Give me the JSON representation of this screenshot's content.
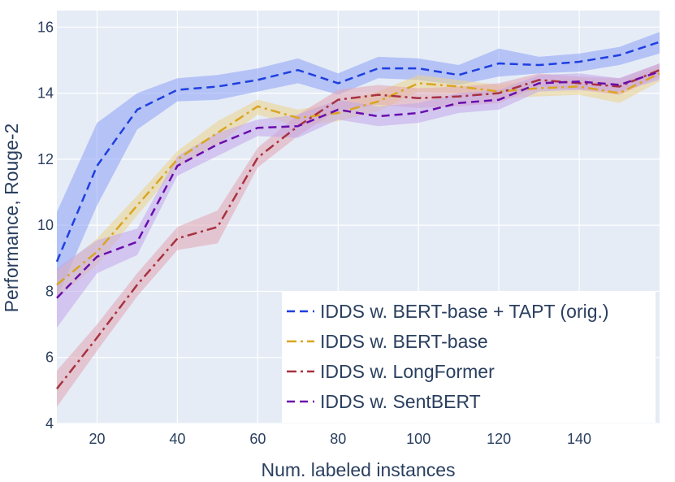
{
  "chart_data": {
    "type": "line",
    "xlabel": "Num. labeled instances",
    "ylabel": "Performance, Rouge-2",
    "xlim": [
      10,
      160
    ],
    "ylim": [
      4,
      16.5
    ],
    "xticks": [
      20,
      40,
      60,
      80,
      100,
      120,
      140
    ],
    "yticks": [
      4,
      6,
      8,
      10,
      12,
      14,
      16
    ],
    "x": [
      10,
      20,
      30,
      40,
      50,
      60,
      70,
      80,
      90,
      100,
      110,
      120,
      130,
      140,
      150,
      160
    ],
    "grid": true,
    "legend_position": "bottom-right",
    "series": [
      {
        "name": "IDDS w. BERT-base + TAPT (orig.)",
        "color": "#1f3fe0",
        "band_color": "#8da0f5",
        "dash": "dash",
        "values": [
          8.9,
          11.8,
          13.5,
          14.1,
          14.2,
          14.4,
          14.7,
          14.3,
          14.75,
          14.75,
          14.55,
          14.9,
          14.85,
          14.95,
          15.15,
          15.55
        ],
        "upper": [
          10.4,
          13.1,
          14.0,
          14.45,
          14.55,
          14.75,
          15.05,
          14.6,
          15.1,
          15.05,
          14.85,
          15.35,
          15.1,
          15.2,
          15.4,
          15.85
        ],
        "lower": [
          7.8,
          10.6,
          12.9,
          13.75,
          13.8,
          14.05,
          14.3,
          13.95,
          14.45,
          14.4,
          14.25,
          14.5,
          14.6,
          14.65,
          14.85,
          15.2
        ]
      },
      {
        "name": "IDDS w. BERT-base",
        "color": "#daa520",
        "band_color": "#ecd38a",
        "dash": "dashdot",
        "values": [
          8.2,
          9.2,
          10.6,
          12.0,
          12.8,
          13.6,
          13.25,
          13.4,
          13.75,
          14.3,
          14.2,
          14.05,
          14.15,
          14.2,
          14.0,
          14.6
        ],
        "upper": [
          8.6,
          9.6,
          10.9,
          12.25,
          13.15,
          13.8,
          13.5,
          13.7,
          14.05,
          14.55,
          14.4,
          14.25,
          14.4,
          14.45,
          14.3,
          14.85
        ],
        "lower": [
          7.8,
          8.8,
          10.3,
          11.75,
          12.45,
          13.35,
          13.0,
          13.15,
          13.45,
          14.05,
          14.0,
          13.85,
          13.9,
          13.95,
          13.7,
          14.35
        ]
      },
      {
        "name": "IDDS w. LongFormer",
        "color": "#a83240",
        "band_color": "#e2a6b2",
        "dash": "dashdot",
        "values": [
          5.05,
          6.6,
          8.2,
          9.6,
          9.95,
          12.05,
          13.0,
          13.8,
          13.95,
          13.85,
          13.9,
          14.0,
          14.4,
          14.3,
          14.2,
          14.7
        ],
        "upper": [
          5.6,
          7.0,
          8.55,
          9.95,
          10.45,
          12.35,
          13.35,
          14.1,
          14.25,
          14.15,
          14.2,
          14.3,
          14.6,
          14.5,
          14.45,
          14.9
        ],
        "lower": [
          4.5,
          6.2,
          7.85,
          9.25,
          9.45,
          11.75,
          12.7,
          13.5,
          13.65,
          13.55,
          13.6,
          13.7,
          14.2,
          14.1,
          13.95,
          14.5
        ]
      },
      {
        "name": "IDDS w. SentBERT",
        "color": "#6a0dad",
        "band_color": "#c3a6ea",
        "dash": "dash",
        "values": [
          7.8,
          9.05,
          9.5,
          11.8,
          12.45,
          12.95,
          13.0,
          13.5,
          13.3,
          13.4,
          13.7,
          13.8,
          14.3,
          14.35,
          14.25,
          14.65
        ],
        "upper": [
          8.7,
          9.55,
          9.9,
          12.1,
          12.8,
          13.2,
          13.35,
          13.8,
          13.6,
          13.7,
          14.0,
          14.1,
          14.55,
          14.6,
          14.45,
          14.9
        ],
        "lower": [
          6.9,
          8.55,
          9.1,
          11.5,
          12.1,
          12.7,
          12.65,
          13.2,
          13.0,
          13.1,
          13.4,
          13.5,
          14.05,
          14.1,
          14.05,
          14.4
        ]
      }
    ]
  }
}
